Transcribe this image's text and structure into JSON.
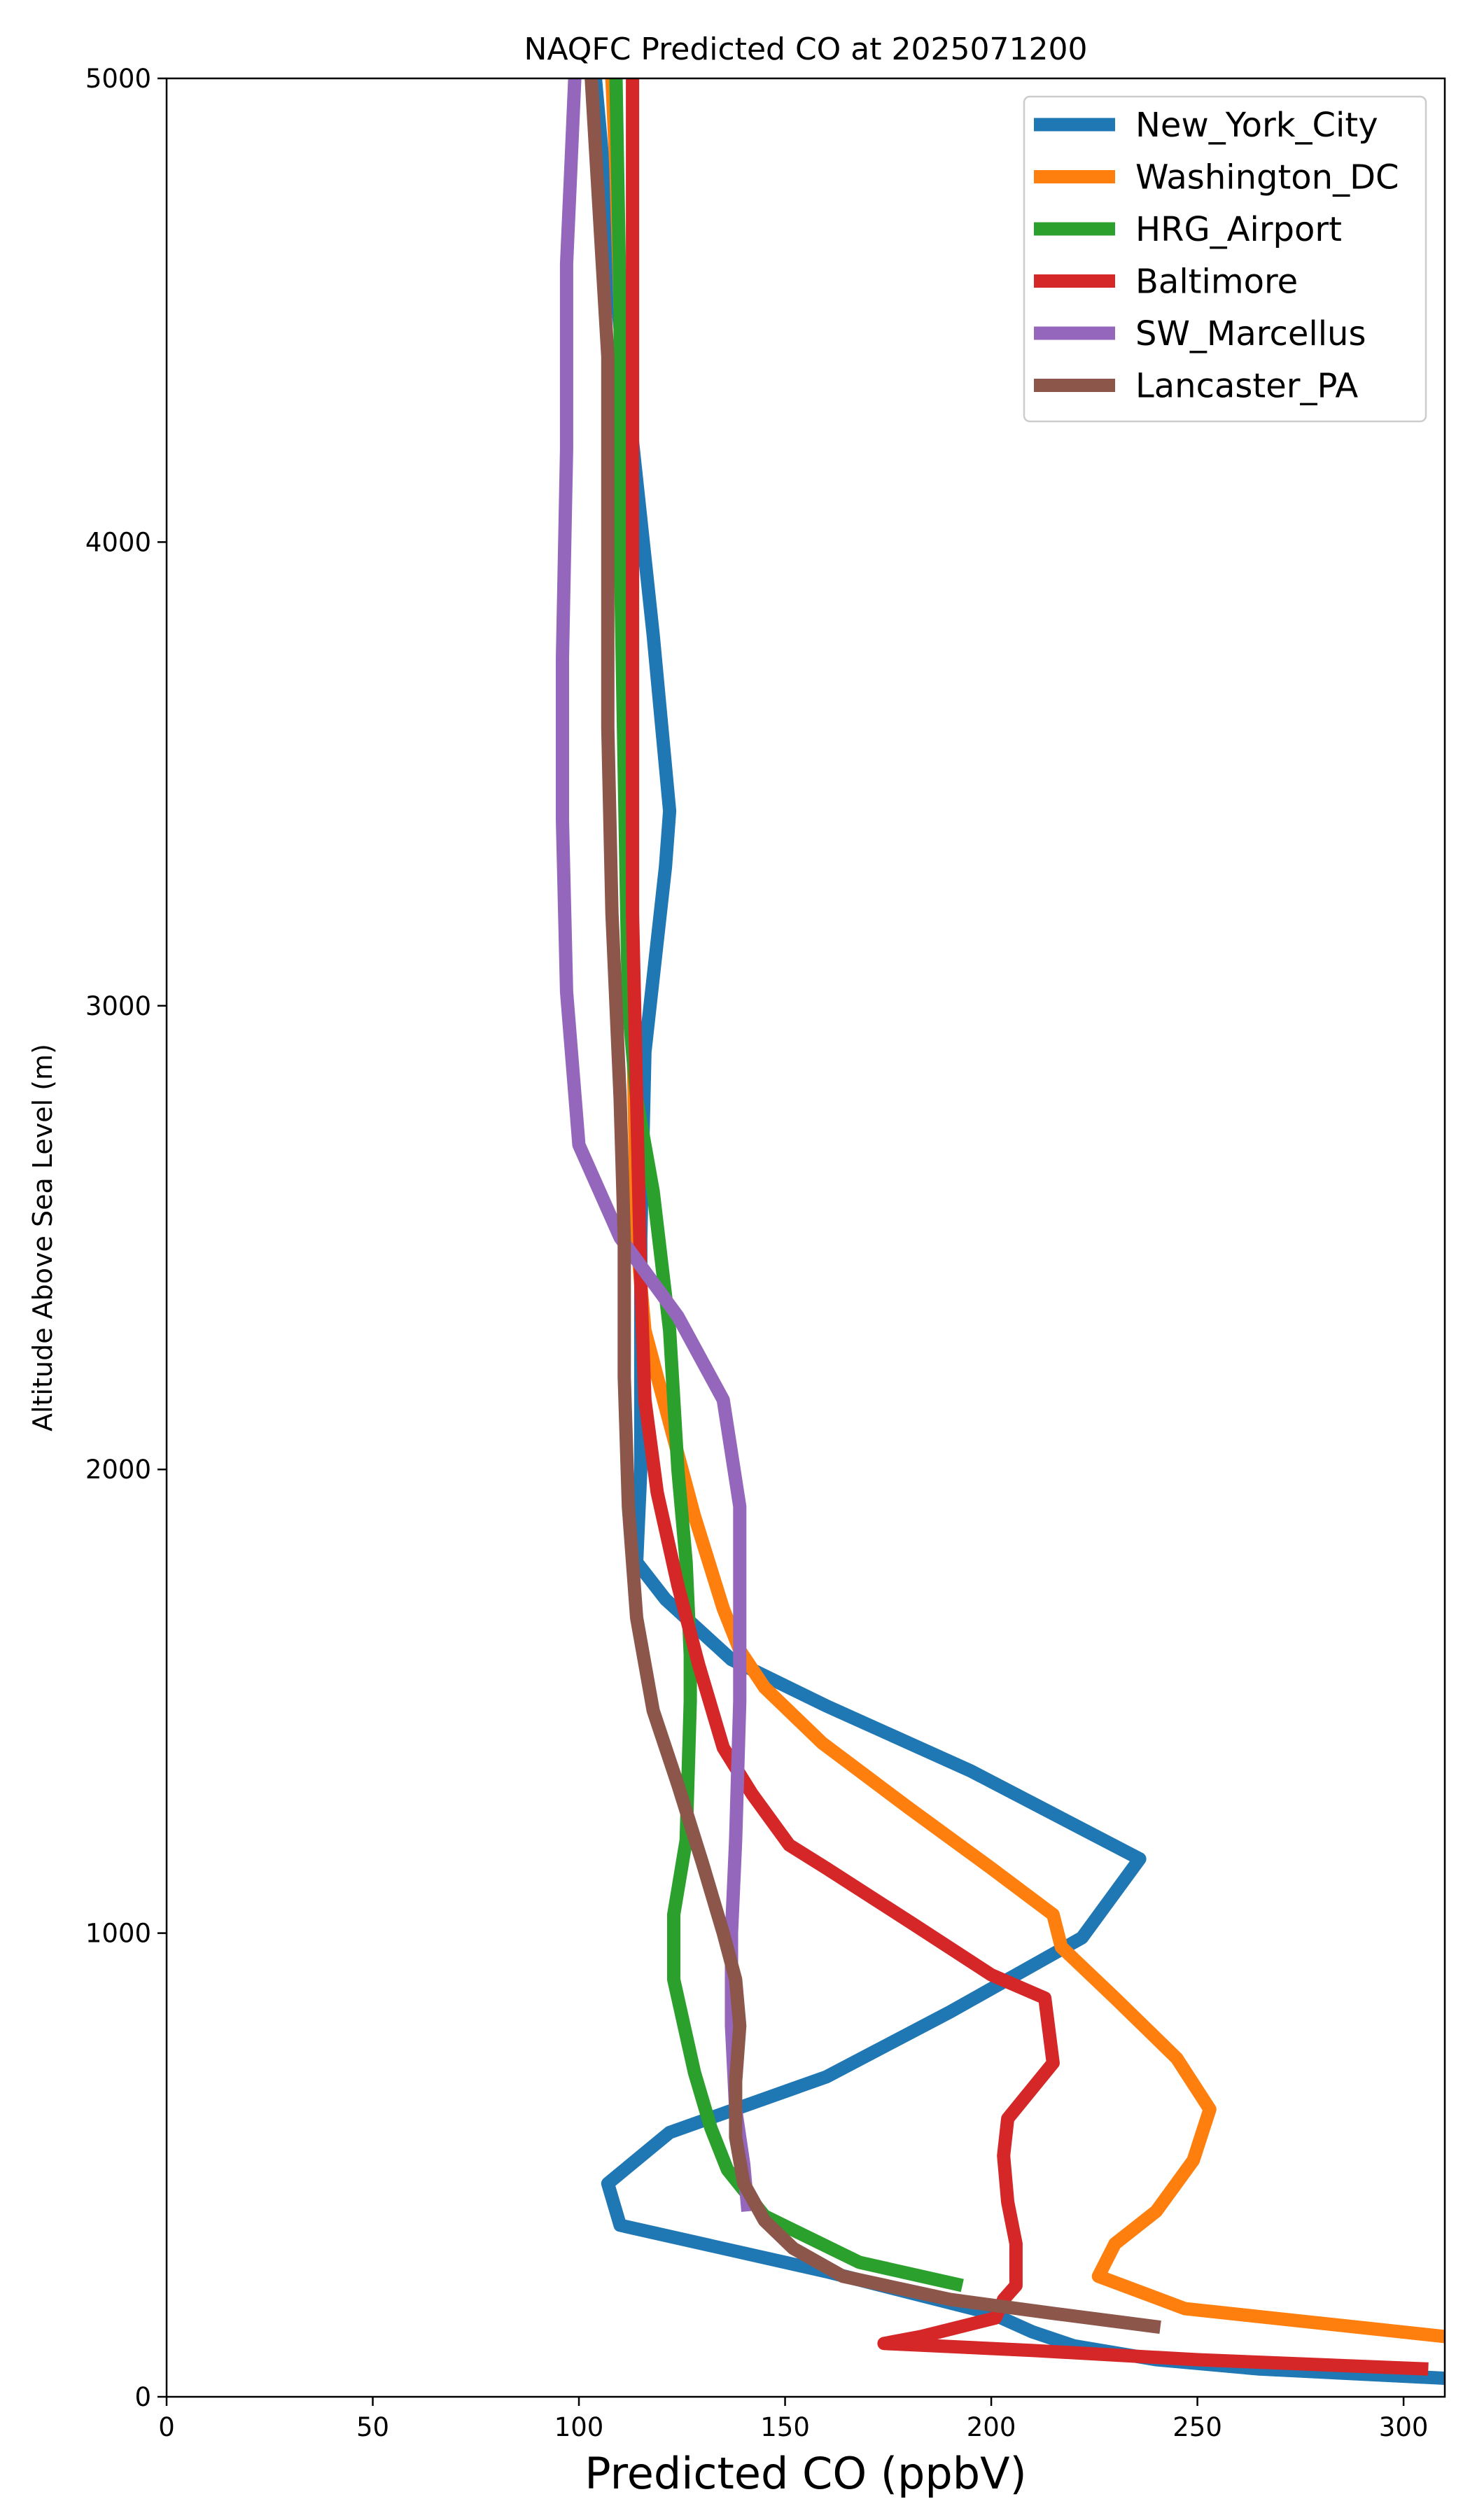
{
  "chart_data": {
    "type": "line",
    "title": "NAQFC Predicted CO at 2025071200",
    "xlabel": "Predicted CO (ppbV)",
    "ylabel": "Altitude Above Sea Level (m)",
    "xlim": [
      0,
      310
    ],
    "ylim": [
      0,
      5000
    ],
    "xticks": [
      0,
      50,
      100,
      150,
      200,
      250,
      300
    ],
    "yticks": [
      0,
      1000,
      2000,
      3000,
      4000,
      5000
    ],
    "grid": false,
    "legend_position": "top-right",
    "series": [
      {
        "name": "New_York_City",
        "color": "#1f77b4",
        "points": [
          [
            310,
            40
          ],
          [
            265,
            60
          ],
          [
            240,
            80
          ],
          [
            220,
            110
          ],
          [
            210,
            140
          ],
          [
            200,
            180
          ],
          [
            160,
            270
          ],
          [
            110,
            370
          ],
          [
            107,
            460
          ],
          [
            122,
            570
          ],
          [
            160,
            690
          ],
          [
            190,
            830
          ],
          [
            222,
            990
          ],
          [
            236,
            1160
          ],
          [
            195,
            1350
          ],
          [
            160,
            1490
          ],
          [
            137,
            1590
          ],
          [
            121,
            1720
          ],
          [
            114,
            1800
          ],
          [
            115,
            2000
          ],
          [
            115,
            2500
          ],
          [
            116,
            2900
          ],
          [
            121,
            3300
          ],
          [
            122,
            3420
          ],
          [
            118,
            3800
          ],
          [
            112,
            4300
          ],
          [
            107,
            4700
          ],
          [
            104,
            5000
          ]
        ]
      },
      {
        "name": "Washington_DC",
        "color": "#ff7f0e",
        "points": [
          [
            310,
            130
          ],
          [
            247,
            190
          ],
          [
            226,
            260
          ],
          [
            230,
            330
          ],
          [
            240,
            400
          ],
          [
            249,
            510
          ],
          [
            253,
            620
          ],
          [
            245,
            730
          ],
          [
            230,
            860
          ],
          [
            217,
            970
          ],
          [
            215,
            1040
          ],
          [
            200,
            1140
          ],
          [
            180,
            1270
          ],
          [
            159,
            1410
          ],
          [
            145,
            1530
          ],
          [
            139,
            1610
          ],
          [
            135,
            1700
          ],
          [
            128,
            1900
          ],
          [
            122,
            2100
          ],
          [
            116,
            2300
          ],
          [
            114,
            2500
          ],
          [
            113,
            3000
          ],
          [
            112,
            3500
          ],
          [
            111,
            4000
          ],
          [
            110,
            4500
          ],
          [
            109,
            4800
          ],
          [
            108,
            5000
          ]
        ]
      },
      {
        "name": "HRG_Airport",
        "color": "#2ca02c",
        "points": [
          [
            193,
            240
          ],
          [
            168,
            290
          ],
          [
            145,
            390
          ],
          [
            136,
            490
          ],
          [
            132,
            580
          ],
          [
            128,
            700
          ],
          [
            123,
            900
          ],
          [
            123,
            1040
          ],
          [
            126,
            1200
          ],
          [
            127,
            1500
          ],
          [
            127,
            1600
          ],
          [
            126,
            1800
          ],
          [
            124,
            2000
          ],
          [
            122,
            2300
          ],
          [
            118,
            2600
          ],
          [
            114,
            2800
          ],
          [
            112,
            3000
          ],
          [
            111,
            3500
          ],
          [
            110,
            4000
          ],
          [
            110,
            4500
          ],
          [
            109,
            5000
          ]
        ]
      },
      {
        "name": "Baltimore",
        "color": "#d62728",
        "points": [
          [
            306,
            60
          ],
          [
            250,
            80
          ],
          [
            210,
            100
          ],
          [
            174,
            115
          ],
          [
            183,
            130
          ],
          [
            201,
            170
          ],
          [
            203,
            210
          ],
          [
            206,
            240
          ],
          [
            206,
            330
          ],
          [
            204,
            420
          ],
          [
            203,
            520
          ],
          [
            204,
            600
          ],
          [
            215,
            720
          ],
          [
            213,
            860
          ],
          [
            200,
            910
          ],
          [
            181,
            1020
          ],
          [
            160,
            1140
          ],
          [
            151,
            1190
          ],
          [
            142,
            1300
          ],
          [
            135,
            1400
          ],
          [
            129,
            1580
          ],
          [
            124,
            1750
          ],
          [
            119,
            1950
          ],
          [
            116,
            2150
          ],
          [
            115,
            2400
          ],
          [
            114,
            2800
          ],
          [
            113,
            3200
          ],
          [
            113,
            3700
          ],
          [
            113,
            4200
          ],
          [
            113,
            4600
          ],
          [
            113,
            5000
          ]
        ]
      },
      {
        "name": "SW_Marcellus",
        "color": "#9467bd",
        "points": [
          [
            141,
            400
          ],
          [
            140,
            500
          ],
          [
            138,
            620
          ],
          [
            137,
            800
          ],
          [
            137,
            1000
          ],
          [
            138,
            1200
          ],
          [
            139,
            1500
          ],
          [
            139,
            1700
          ],
          [
            139,
            1920
          ],
          [
            135,
            2150
          ],
          [
            124,
            2330
          ],
          [
            110,
            2500
          ],
          [
            100,
            2700
          ],
          [
            97,
            3030
          ],
          [
            96,
            3400
          ],
          [
            96,
            3750
          ],
          [
            97,
            4200
          ],
          [
            97,
            4600
          ],
          [
            98,
            4800
          ],
          [
            99,
            5000
          ]
        ]
      },
      {
        "name": "Lancaster_PA",
        "color": "#8c564b",
        "points": [
          [
            241,
            150
          ],
          [
            215,
            180
          ],
          [
            190,
            210
          ],
          [
            164,
            260
          ],
          [
            152,
            320
          ],
          [
            145,
            380
          ],
          [
            140,
            460
          ],
          [
            138,
            560
          ],
          [
            138,
            680
          ],
          [
            139,
            800
          ],
          [
            138,
            900
          ],
          [
            135,
            1000
          ],
          [
            130,
            1150
          ],
          [
            124,
            1320
          ],
          [
            118,
            1480
          ],
          [
            114,
            1680
          ],
          [
            112,
            1920
          ],
          [
            111,
            2200
          ],
          [
            111,
            2500
          ],
          [
            110,
            2800
          ],
          [
            108,
            3200
          ],
          [
            107,
            3600
          ],
          [
            107,
            4000
          ],
          [
            107,
            4400
          ],
          [
            105,
            4700
          ],
          [
            103,
            5000
          ]
        ]
      }
    ]
  }
}
